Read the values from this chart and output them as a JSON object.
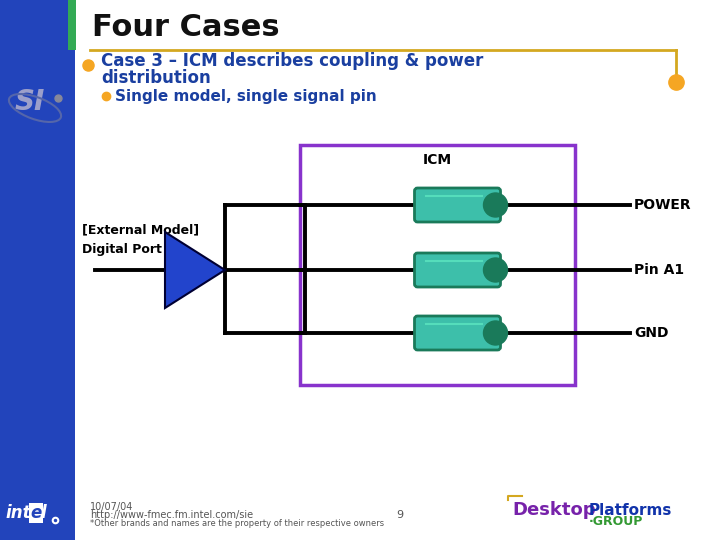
{
  "title": "Four Cases",
  "bullet1_line1": "Case 3 – ICM describes coupling & power",
  "bullet1_line2": "distribution",
  "bullet2": "Single model, single signal pin",
  "icm_label": "ICM",
  "power_label": "POWER",
  "pin_label": "Pin A1",
  "gnd_label": "GND",
  "ext_model_label": "[External Model]",
  "digital_port_label": "Digital Port",
  "bg_color": "#ffffff",
  "left_bar_color": "#2244bb",
  "title_color": "#111111",
  "bullet1_color": "#1a3fa0",
  "icm_box_color": "#8833cc",
  "teal_color": "#3dbfaa",
  "teal_dark": "#1a7a5a",
  "buffer_color": "#2244cc",
  "wire_color": "#000000",
  "footer_color": "#555555",
  "orange_color": "#f5a623",
  "gold_color": "#d4a820",
  "green_accent": "#33aa55",
  "page_num": "9",
  "date": "10/07/04",
  "url": "http://www-fmec.fm.intel.com/sie",
  "disclaimer": "*Other brands and names are the property of their respective owners",
  "desktop_purple": "#7722aa",
  "desktop_blue": "#1133aa",
  "desktop_green": "#339933"
}
